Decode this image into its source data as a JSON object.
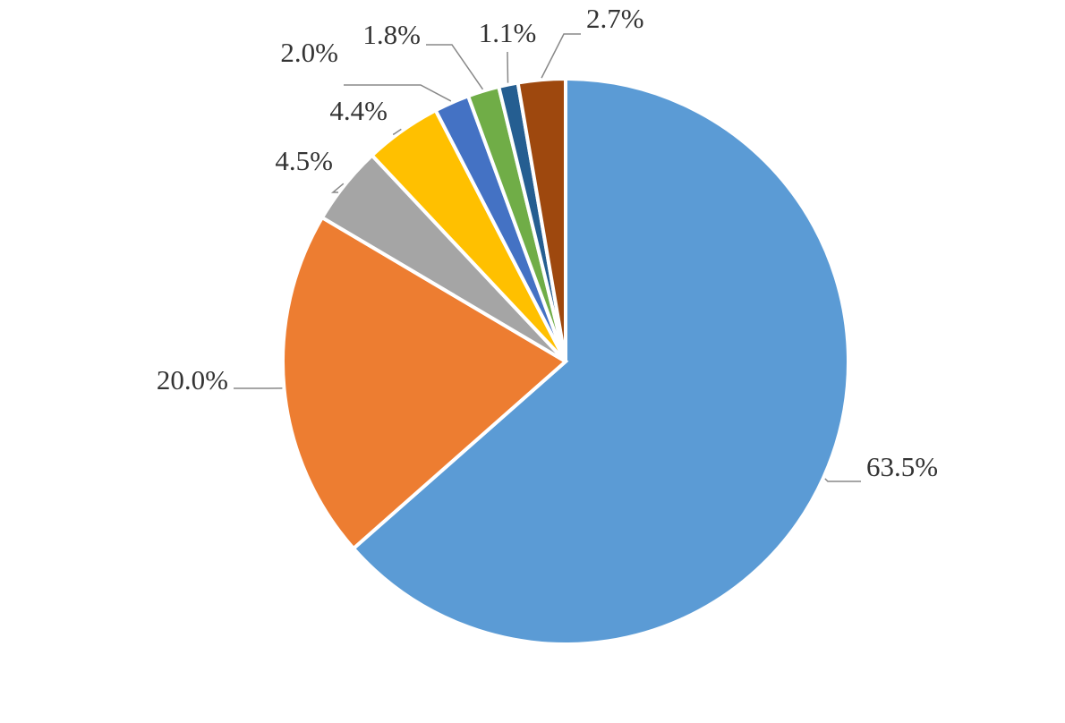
{
  "chart_data": {
    "type": "pie",
    "values": [
      63.5,
      20.0,
      4.5,
      4.4,
      2.0,
      1.8,
      1.1,
      2.7
    ],
    "value_labels": [
      "63.5%",
      "20.0%",
      "4.5%",
      "4.4%",
      "2.0%",
      "1.8%",
      "1.1%",
      "2.7%"
    ],
    "colors": [
      "#5b9bd5",
      "#ed7d31",
      "#a5a5a5",
      "#ffc000",
      "#4472c4",
      "#70ad47",
      "#255e91",
      "#9e480e"
    ]
  }
}
